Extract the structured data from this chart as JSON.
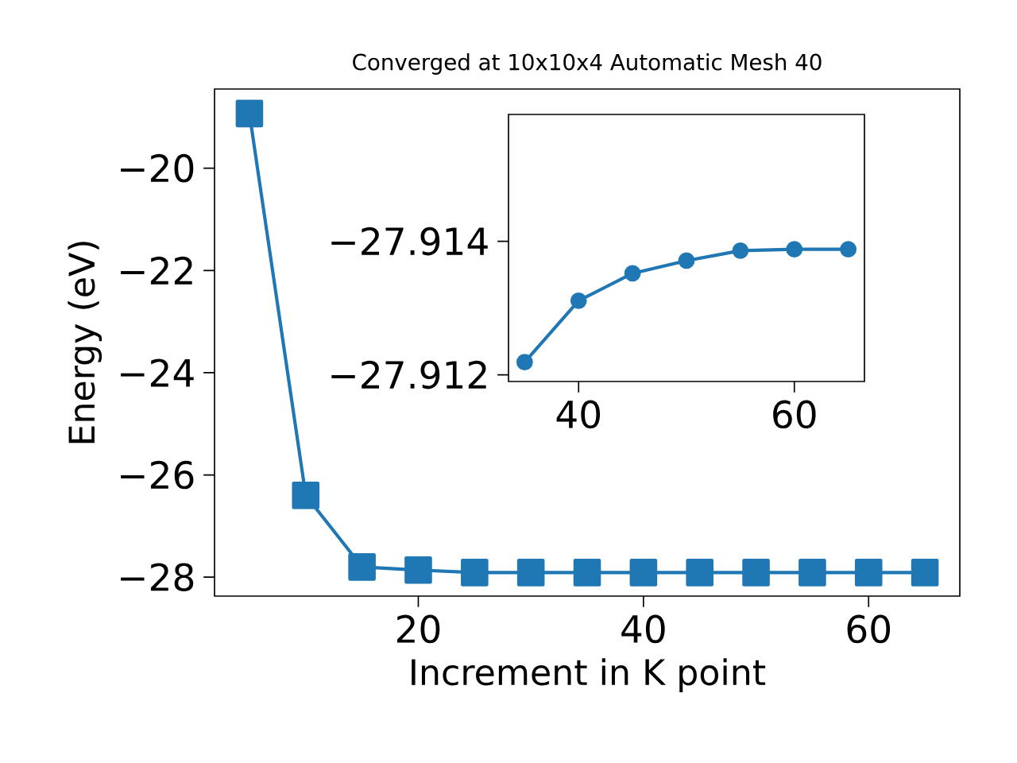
{
  "chart_data": [
    {
      "type": "line",
      "title": "Converged at 10x10x4 Automatic Mesh 40",
      "xlabel": "Increment in K point",
      "ylabel": "Energy (eV)",
      "x": [
        5,
        10,
        15,
        20,
        25,
        30,
        35,
        40,
        45,
        50,
        55,
        60,
        65
      ],
      "series": [
        {
          "color": "#1f77b4",
          "values": [
            -18.93,
            -26.4,
            -27.8,
            -27.86,
            -27.91,
            -27.91,
            -27.91,
            -27.91,
            -27.91,
            -27.91,
            -27.91,
            -27.91,
            -27.91
          ]
        }
      ],
      "xlim": [
        1.9,
        68.1
      ],
      "ylim": [
        -28.37,
        -18.45
      ],
      "xticks": [
        20,
        40,
        60
      ],
      "yticks": [
        {
          "value": -28,
          "label": "−28"
        },
        {
          "value": -26,
          "label": "−26"
        },
        {
          "value": -24,
          "label": "−24"
        },
        {
          "value": -22,
          "label": "−22"
        },
        {
          "value": -20,
          "label": "−20"
        }
      ],
      "marker": "square",
      "line_style": "solid",
      "grid": false
    },
    {
      "type": "line",
      "x": [
        35,
        40,
        45,
        50,
        55,
        60,
        65
      ],
      "series": [
        {
          "color": "#1f77b4",
          "values": [
            -27.91219,
            -27.91311,
            -27.91352,
            -27.91371,
            -27.91386,
            -27.91388,
            -27.91388
          ]
        }
      ],
      "xlim": [
        33.5,
        66.5
      ],
      "ylim": [
        -27.9119,
        -27.9159
      ],
      "xticks": [
        40,
        60
      ],
      "yticks": [
        {
          "value": -27.912,
          "label": "−27.912"
        },
        {
          "value": -27.914,
          "label": "−27.914"
        }
      ],
      "marker": "circle",
      "line_style": "solid",
      "grid": false
    }
  ]
}
